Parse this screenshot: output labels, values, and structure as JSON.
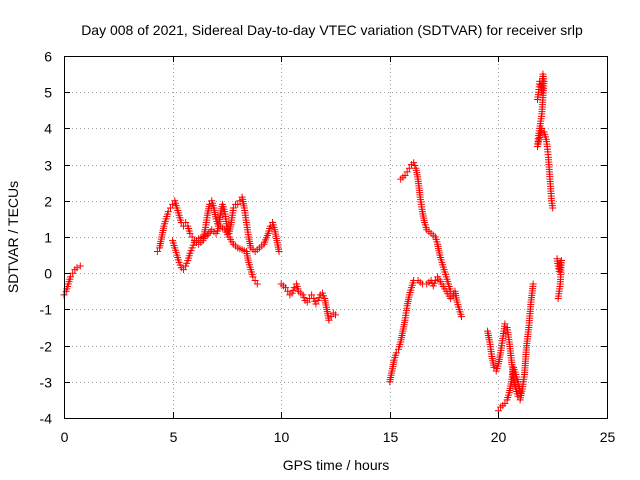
{
  "chart_data": {
    "type": "scatter",
    "title": "Day 008 of 2021, Sidereal Day-to-day VTEC variation (SDTVAR) for receiver srlp",
    "xlabel": "GPS time / hours",
    "ylabel": "SDTVAR / TECUs",
    "xlim": [
      0,
      25
    ],
    "ylim": [
      -4,
      6
    ],
    "xticks": [
      "0",
      "5",
      "10",
      "15",
      "20",
      "25"
    ],
    "yticks": [
      "-4",
      "-3",
      "-2",
      "-1",
      "0",
      "1",
      "2",
      "3",
      "4",
      "5",
      "6"
    ],
    "grid": true,
    "marker": "plus",
    "color": "#ff0000",
    "series": [
      {
        "name": "SDTVAR",
        "segments": [
          [
            [
              0.0,
              -0.6
            ],
            [
              0.1,
              -0.5
            ],
            [
              0.2,
              -0.3
            ],
            [
              0.3,
              -0.1
            ],
            [
              0.4,
              0.0
            ],
            [
              0.5,
              0.1
            ],
            [
              0.6,
              0.15
            ],
            [
              0.75,
              0.2
            ]
          ],
          [
            [
              4.3,
              0.6
            ],
            [
              4.4,
              0.7
            ],
            [
              4.5,
              1.0
            ],
            [
              4.6,
              1.3
            ],
            [
              4.7,
              1.5
            ],
            [
              4.8,
              1.7
            ],
            [
              4.9,
              1.8
            ],
            [
              5.0,
              1.9
            ],
            [
              5.1,
              2.0
            ],
            [
              5.2,
              1.8
            ],
            [
              5.3,
              1.6
            ],
            [
              5.4,
              1.4
            ],
            [
              5.5,
              1.3
            ],
            [
              5.6,
              1.4
            ],
            [
              5.7,
              1.3
            ],
            [
              5.8,
              1.1
            ],
            [
              5.9,
              1.0
            ],
            [
              6.0,
              0.9
            ],
            [
              6.2,
              0.8
            ],
            [
              6.4,
              0.9
            ],
            [
              6.5,
              1.2
            ],
            [
              6.6,
              1.6
            ],
            [
              6.7,
              1.9
            ],
            [
              6.8,
              2.0
            ],
            [
              6.9,
              1.8
            ],
            [
              7.0,
              1.5
            ],
            [
              7.1,
              1.3
            ],
            [
              7.2,
              1.6
            ],
            [
              7.3,
              1.9
            ],
            [
              7.4,
              1.7
            ],
            [
              7.5,
              1.3
            ],
            [
              7.6,
              1.1
            ],
            [
              7.7,
              1.4
            ],
            [
              7.8,
              1.8
            ],
            [
              7.9,
              1.9
            ],
            [
              8.0,
              1.9
            ],
            [
              8.1,
              2.0
            ],
            [
              8.2,
              2.1
            ],
            [
              8.3,
              1.8
            ],
            [
              8.4,
              1.4
            ],
            [
              8.5,
              1.0
            ],
            [
              8.6,
              0.7
            ],
            [
              8.8,
              0.6
            ],
            [
              9.0,
              0.7
            ],
            [
              9.2,
              0.8
            ],
            [
              9.4,
              1.1
            ],
            [
              9.5,
              1.3
            ],
            [
              9.6,
              1.4
            ],
            [
              9.7,
              1.2
            ],
            [
              9.8,
              0.9
            ],
            [
              9.9,
              0.6
            ]
          ],
          [
            [
              5.0,
              0.9
            ],
            [
              5.1,
              0.7
            ],
            [
              5.2,
              0.5
            ],
            [
              5.3,
              0.3
            ],
            [
              5.4,
              0.15
            ],
            [
              5.5,
              0.1
            ],
            [
              5.6,
              0.2
            ],
            [
              5.7,
              0.35
            ],
            [
              5.8,
              0.55
            ],
            [
              5.9,
              0.7
            ],
            [
              6.0,
              0.85
            ],
            [
              6.2,
              0.95
            ],
            [
              6.4,
              1.0
            ],
            [
              6.6,
              1.05
            ],
            [
              6.8,
              1.2
            ],
            [
              7.0,
              1.1
            ],
            [
              7.2,
              1.3
            ],
            [
              7.4,
              1.2
            ],
            [
              7.6,
              1.0
            ],
            [
              7.8,
              0.8
            ],
            [
              8.0,
              0.7
            ],
            [
              8.2,
              0.65
            ],
            [
              8.4,
              0.6
            ],
            [
              8.5,
              0.3
            ],
            [
              8.6,
              0.1
            ],
            [
              8.7,
              -0.1
            ],
            [
              8.8,
              -0.2
            ],
            [
              8.9,
              -0.3
            ]
          ],
          [
            [
              10.0,
              -0.3
            ],
            [
              10.1,
              -0.35
            ],
            [
              10.2,
              -0.4
            ],
            [
              10.3,
              -0.5
            ],
            [
              10.4,
              -0.6
            ],
            [
              10.5,
              -0.55
            ],
            [
              10.6,
              -0.4
            ],
            [
              10.7,
              -0.3
            ],
            [
              10.8,
              -0.5
            ],
            [
              10.9,
              -0.55
            ],
            [
              11.0,
              -0.6
            ],
            [
              11.1,
              -0.75
            ],
            [
              11.2,
              -0.8
            ],
            [
              11.3,
              -0.7
            ],
            [
              11.4,
              -0.6
            ],
            [
              11.5,
              -0.7
            ],
            [
              11.6,
              -0.85
            ],
            [
              11.7,
              -0.75
            ],
            [
              11.8,
              -0.6
            ],
            [
              11.9,
              -0.55
            ],
            [
              12.0,
              -0.7
            ],
            [
              12.1,
              -1.0
            ],
            [
              12.2,
              -1.3
            ],
            [
              12.3,
              -1.2
            ],
            [
              12.4,
              -1.1
            ],
            [
              12.5,
              -1.15
            ]
          ],
          [
            [
              15.0,
              -3.0
            ],
            [
              15.1,
              -2.7
            ],
            [
              15.2,
              -2.4
            ],
            [
              15.3,
              -2.2
            ],
            [
              15.4,
              -2.1
            ],
            [
              15.5,
              -1.9
            ],
            [
              15.6,
              -1.6
            ],
            [
              15.7,
              -1.3
            ],
            [
              15.8,
              -0.9
            ],
            [
              15.9,
              -0.6
            ],
            [
              16.0,
              -0.4
            ],
            [
              16.1,
              -0.2
            ],
            [
              16.3,
              -0.2
            ],
            [
              16.5,
              -0.3
            ],
            [
              16.7,
              -0.3
            ],
            [
              16.9,
              -0.2
            ],
            [
              17.0,
              -0.35
            ],
            [
              17.1,
              -0.2
            ],
            [
              17.2,
              -0.1
            ],
            [
              17.4,
              -0.3
            ],
            [
              17.6,
              -0.5
            ],
            [
              17.8,
              -0.7
            ],
            [
              18.0,
              -0.5
            ],
            [
              18.1,
              -0.8
            ],
            [
              18.2,
              -1.0
            ],
            [
              18.3,
              -1.2
            ]
          ],
          [
            [
              15.5,
              2.6
            ],
            [
              15.6,
              2.65
            ],
            [
              15.7,
              2.7
            ],
            [
              15.8,
              2.8
            ],
            [
              15.9,
              2.9
            ],
            [
              16.0,
              3.0
            ],
            [
              16.1,
              3.05
            ],
            [
              16.2,
              2.9
            ],
            [
              16.3,
              2.6
            ],
            [
              16.4,
              2.1
            ],
            [
              16.5,
              1.7
            ],
            [
              16.6,
              1.4
            ],
            [
              16.7,
              1.2
            ],
            [
              16.8,
              1.15
            ],
            [
              16.9,
              1.1
            ],
            [
              17.0,
              1.05
            ],
            [
              17.1,
              1.0
            ],
            [
              17.2,
              0.8
            ],
            [
              17.3,
              0.5
            ],
            [
              17.4,
              0.3
            ],
            [
              17.5,
              0.1
            ],
            [
              17.6,
              -0.1
            ],
            [
              17.7,
              -0.3
            ],
            [
              17.8,
              -0.5
            ]
          ],
          [
            [
              19.5,
              -1.6
            ],
            [
              19.6,
              -1.9
            ],
            [
              19.7,
              -2.3
            ],
            [
              19.8,
              -2.6
            ],
            [
              19.9,
              -2.7
            ],
            [
              20.0,
              -2.5
            ],
            [
              20.1,
              -2.2
            ],
            [
              20.2,
              -1.8
            ],
            [
              20.3,
              -1.4
            ],
            [
              20.4,
              -1.5
            ],
            [
              20.5,
              -1.9
            ],
            [
              20.6,
              -2.4
            ],
            [
              20.7,
              -2.9
            ],
            [
              20.8,
              -3.2
            ],
            [
              20.9,
              -3.4
            ],
            [
              21.0,
              -3.5
            ],
            [
              21.1,
              -3.2
            ],
            [
              21.2,
              -2.8
            ],
            [
              21.3,
              -2.0
            ],
            [
              21.4,
              -1.5
            ],
            [
              21.5,
              -0.8
            ],
            [
              21.6,
              -0.3
            ]
          ],
          [
            [
              20.0,
              -3.8
            ],
            [
              20.1,
              -3.7
            ],
            [
              20.2,
              -3.65
            ],
            [
              20.3,
              -3.6
            ],
            [
              20.4,
              -3.5
            ],
            [
              20.5,
              -3.3
            ],
            [
              20.6,
              -3.0
            ],
            [
              20.7,
              -2.6
            ],
            [
              20.8,
              -2.8
            ],
            [
              20.9,
              -3.0
            ],
            [
              21.0,
              -3.3
            ]
          ],
          [
            [
              21.8,
              4.8
            ],
            [
              21.85,
              5.0
            ],
            [
              21.9,
              5.3
            ],
            [
              21.95,
              5.2
            ],
            [
              22.0,
              5.0
            ],
            [
              22.05,
              5.5
            ],
            [
              22.1,
              5.3
            ],
            [
              22.0,
              4.4
            ],
            [
              21.95,
              4.2
            ],
            [
              21.9,
              4.0
            ],
            [
              21.85,
              3.8
            ],
            [
              21.8,
              3.5
            ],
            [
              22.0,
              4.0
            ],
            [
              22.1,
              3.9
            ],
            [
              22.2,
              3.7
            ],
            [
              22.25,
              3.5
            ],
            [
              22.3,
              3.2
            ],
            [
              22.35,
              2.8
            ],
            [
              22.4,
              2.4
            ],
            [
              22.45,
              2.0
            ],
            [
              22.5,
              1.8
            ]
          ],
          [
            [
              22.7,
              0.4
            ],
            [
              22.75,
              0.2
            ],
            [
              22.8,
              0.05
            ],
            [
              22.85,
              0.3
            ],
            [
              22.9,
              0.35
            ],
            [
              22.85,
              -0.3
            ],
            [
              22.8,
              -0.5
            ],
            [
              22.75,
              -0.7
            ]
          ]
        ]
      }
    ]
  }
}
